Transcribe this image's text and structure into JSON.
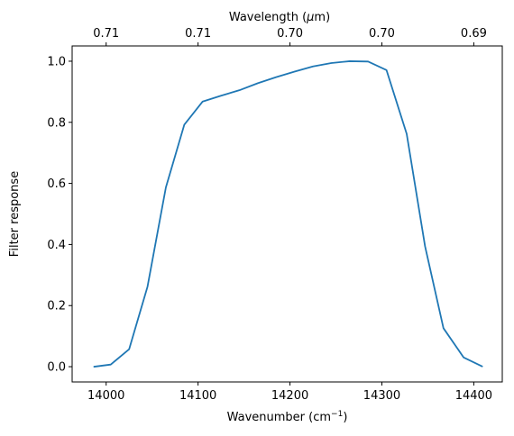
{
  "chart_data": {
    "type": "line",
    "title": "",
    "xlabel_prefix": "Wavenumber (cm",
    "xlabel_sup": "−1",
    "xlabel_suffix": ")",
    "ylabel": "Filter response",
    "top_xlabel_prefix": "Wavelength (",
    "top_xlabel_mu": "μ",
    "top_xlabel_suffix": "m)",
    "xlim": [
      13963,
      14431
    ],
    "ylim": [
      -0.05,
      1.05
    ],
    "x_ticks": [
      14000,
      14100,
      14200,
      14300,
      14400
    ],
    "x_tick_labels": [
      "14000",
      "14100",
      "14200",
      "14300",
      "14400"
    ],
    "y_ticks": [
      0.0,
      0.2,
      0.4,
      0.6,
      0.8,
      1.0
    ],
    "y_tick_labels": [
      "0.0",
      "0.2",
      "0.4",
      "0.6",
      "0.8",
      "1.0"
    ],
    "top_ticks_at_wavenumber": [
      14000,
      14100,
      14200,
      14300,
      14400
    ],
    "top_tick_labels": [
      "0.71",
      "0.71",
      "0.70",
      "0.70",
      "0.69"
    ],
    "grid": false,
    "line_color": "#1f77b4",
    "series": [
      {
        "x": [
          13987,
          14005,
          14025,
          14045,
          14065,
          14085,
          14105,
          14125,
          14145,
          14165,
          14185,
          14205,
          14225,
          14245,
          14265,
          14285,
          14305,
          14327,
          14347,
          14367,
          14389,
          14409
        ],
        "y": [
          0.0,
          0.007,
          0.057,
          0.262,
          0.587,
          0.792,
          0.868,
          0.887,
          0.905,
          0.928,
          0.948,
          0.966,
          0.983,
          0.994,
          1.0,
          0.999,
          0.971,
          0.762,
          0.394,
          0.126,
          0.03,
          0.001
        ]
      }
    ]
  }
}
